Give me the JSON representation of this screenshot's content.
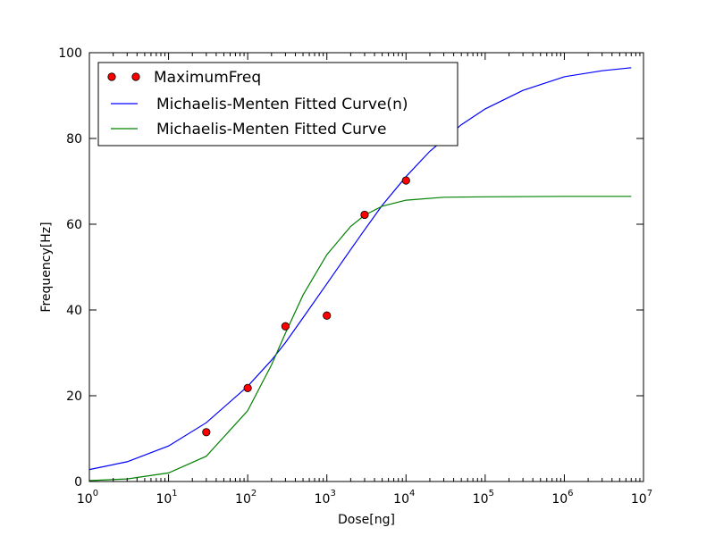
{
  "chart_data": {
    "type": "line",
    "xlabel": "Dose[ng]",
    "ylabel": "Frequency[Hz]",
    "x_scale": "log",
    "xlim": [
      1,
      10000000
    ],
    "ylim": [
      0,
      100
    ],
    "x_ticks": [
      {
        "value": 1,
        "base": "10",
        "exp": "0"
      },
      {
        "value": 10,
        "base": "10",
        "exp": "1"
      },
      {
        "value": 100,
        "base": "10",
        "exp": "2"
      },
      {
        "value": 1000,
        "base": "10",
        "exp": "3"
      },
      {
        "value": 10000,
        "base": "10",
        "exp": "4"
      },
      {
        "value": 100000,
        "base": "10",
        "exp": "5"
      },
      {
        "value": 1000000,
        "base": "10",
        "exp": "6"
      },
      {
        "value": 10000000,
        "base": "10",
        "exp": "7"
      }
    ],
    "y_ticks": [
      0,
      20,
      40,
      60,
      80,
      100
    ],
    "y_tick_labels": [
      "0",
      "20",
      "40",
      "60",
      "80",
      "100"
    ],
    "grid": false,
    "legend_position": "top-left",
    "series": [
      {
        "name": "MaximumFreq",
        "kind": "markers",
        "color": "#ff0000",
        "x": [
          30,
          100,
          300,
          1000,
          3000,
          10000
        ],
        "y": [
          11.5,
          21.8,
          36.2,
          38.7,
          62.2,
          70.2
        ]
      },
      {
        "name": "Michaelis-Menten Fitted Curve(n)",
        "kind": "line",
        "color": "#0000ff",
        "x": [
          1,
          3,
          10,
          30,
          100,
          200,
          300,
          500,
          1000,
          2000,
          3000,
          5000,
          10000,
          20000,
          50000,
          100000,
          300000,
          1000000,
          3000000,
          7000000
        ],
        "y": [
          2.8,
          4.6,
          8.3,
          13.7,
          22.2,
          28.3,
          32.4,
          38.2,
          46.1,
          54.1,
          58.7,
          64.4,
          71.1,
          77.0,
          83.2,
          86.9,
          91.2,
          94.4,
          95.8,
          96.5
        ]
      },
      {
        "name": "Michaelis-Menten Fitted Curve",
        "kind": "line",
        "color": "#008000",
        "x": [
          1,
          3,
          10,
          30,
          100,
          200,
          300,
          500,
          1000,
          2000,
          3000,
          5000,
          10000,
          30000,
          100000,
          1000000,
          7000000
        ],
        "y": [
          0.2,
          0.6,
          2.0,
          5.9,
          16.5,
          27.2,
          34.6,
          43.5,
          52.9,
          59.5,
          62.1,
          64.2,
          65.6,
          66.3,
          66.4,
          66.5,
          66.5
        ]
      }
    ]
  }
}
